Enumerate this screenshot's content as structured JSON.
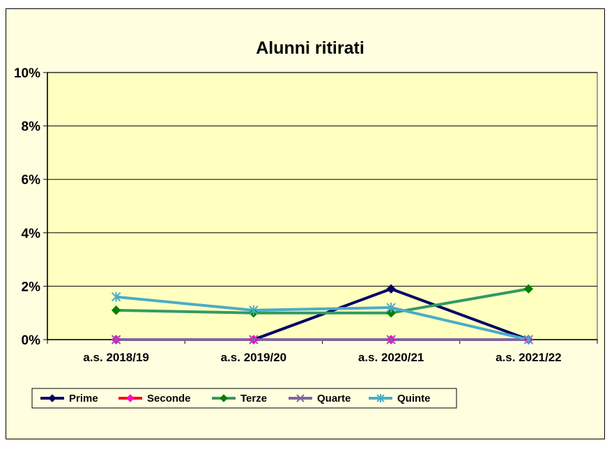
{
  "chart_data": {
    "type": "line",
    "title": "Alunni ritirati",
    "xlabel": "",
    "ylabel": "",
    "categories": [
      "a.s. 2018/19",
      "a.s. 2019/20",
      "a.s. 2020/21",
      "a.s. 2021/22"
    ],
    "ylim": [
      0,
      10
    ],
    "yticks": [
      0,
      2,
      4,
      6,
      8,
      10
    ],
    "ytick_labels": [
      "0%",
      "2%",
      "4%",
      "6%",
      "8%",
      "10%"
    ],
    "grid": true,
    "legend_position": "bottom-left",
    "plot_background": "#ffffc0",
    "chart_background": "#ffffe0",
    "series": [
      {
        "name": "Prime",
        "color": "#000066",
        "marker": "diamond",
        "values": [
          0,
          0,
          1.9,
          0
        ]
      },
      {
        "name": "Seconde",
        "color": "#ff0000",
        "marker": "diamond",
        "marker_color": "#ff00cc",
        "values": [
          0,
          0,
          0,
          0
        ]
      },
      {
        "name": "Terze",
        "color": "#339966",
        "marker": "diamond",
        "marker_color": "#008000",
        "values": [
          1.1,
          1.0,
          1.0,
          1.9
        ]
      },
      {
        "name": "Quarte",
        "color": "#8064a2",
        "marker": "x",
        "values": [
          0,
          0,
          0,
          0
        ]
      },
      {
        "name": "Quinte",
        "color": "#4bacc6",
        "marker": "asterisk",
        "values": [
          1.6,
          1.1,
          1.2,
          0
        ]
      }
    ]
  }
}
